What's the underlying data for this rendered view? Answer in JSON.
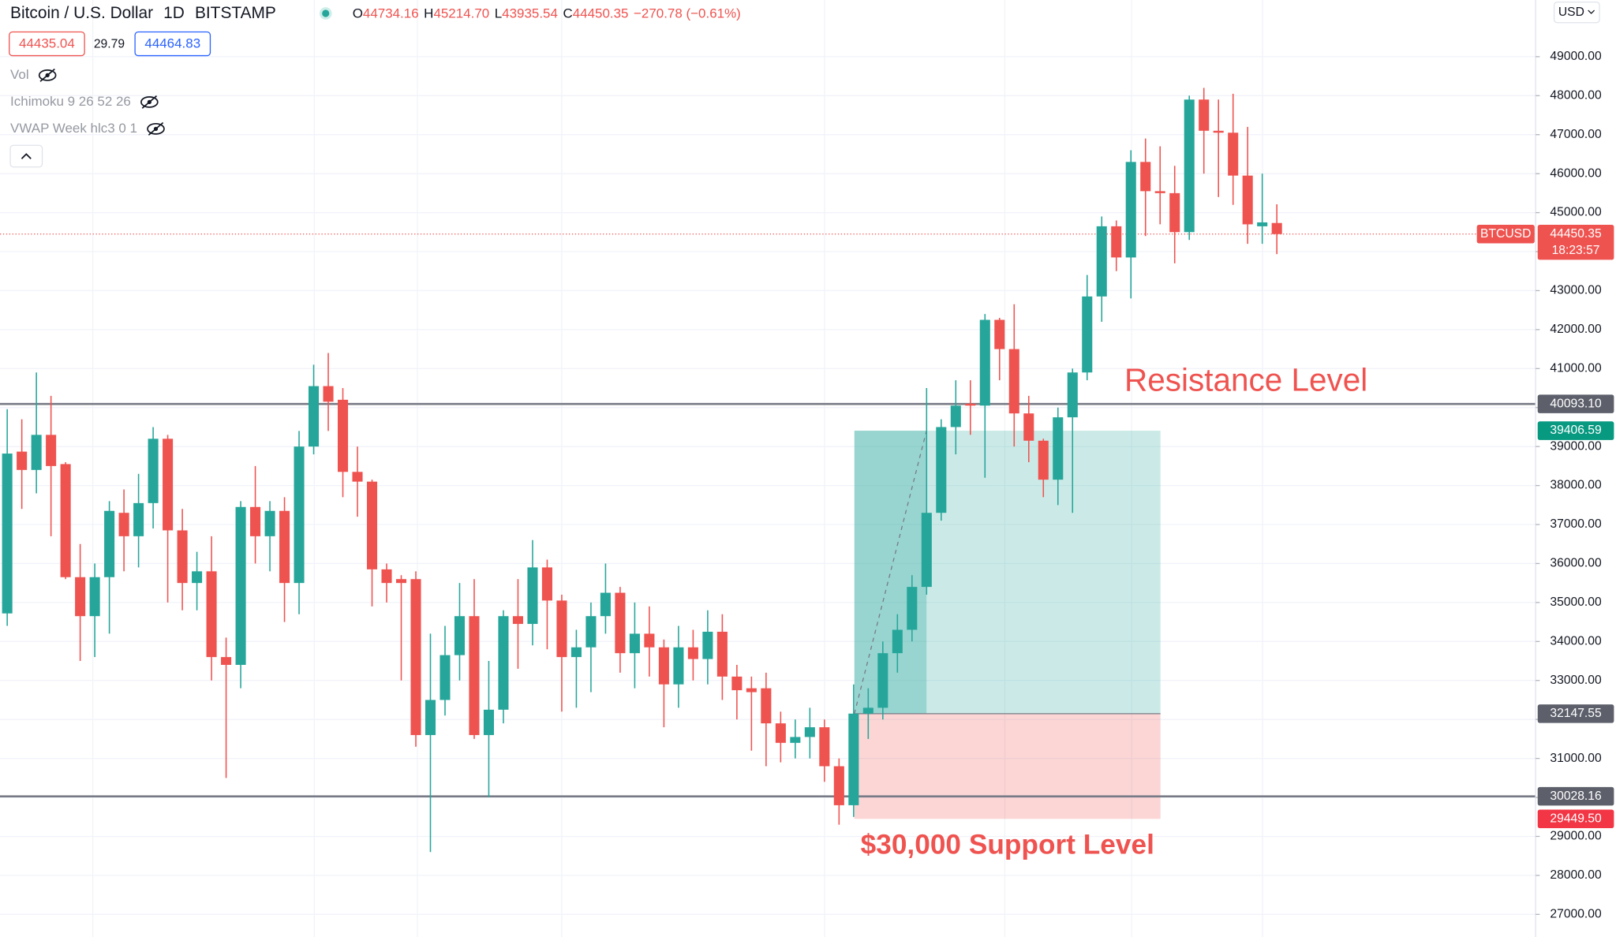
{
  "chart_data": {
    "type": "candlestick",
    "header": {
      "symbol": "Bitcoin / U.S. Dollar",
      "interval": "1D",
      "exchange": "BITSTAMP",
      "ohlc": [
        {
          "key": "O",
          "value": "44734.16"
        },
        {
          "key": "H",
          "value": "45214.70"
        },
        {
          "key": "L",
          "value": "43935.54"
        },
        {
          "key": "C",
          "value": "44450.35"
        }
      ],
      "change": "−270.78 (−0.61%)",
      "bid": "44435.04",
      "spread": "29.79",
      "ask": "44464.83",
      "indicators": [
        "Vol",
        "Ichimoku 9 26 52 26",
        "VWAP Week hlc3 0 1"
      ],
      "currency": "USD"
    },
    "up_color": "#26a69a",
    "down_color": "#ef5350",
    "ylim": [
      26420,
      50454
    ],
    "yticks": [
      {
        "value": 27000,
        "label": "27000.00"
      },
      {
        "value": 28000,
        "label": "28000.00"
      },
      {
        "value": 29000,
        "label": "29000.00"
      },
      {
        "value": 30000,
        "label": "30000.00"
      },
      {
        "value": 31000,
        "label": "31000.00"
      },
      {
        "value": 32000,
        "label": "32000.00"
      },
      {
        "value": 33000,
        "label": "33000.00"
      },
      {
        "value": 34000,
        "label": "34000.00"
      },
      {
        "value": 35000,
        "label": "35000.00"
      },
      {
        "value": 36000,
        "label": "36000.00"
      },
      {
        "value": 37000,
        "label": "37000.00"
      },
      {
        "value": 38000,
        "label": "38000.00"
      },
      {
        "value": 39000,
        "label": "39000.00"
      },
      {
        "value": 40000,
        "label": "40000.00"
      },
      {
        "value": 41000,
        "label": "41000.00"
      },
      {
        "value": 42000,
        "label": "42000.00"
      },
      {
        "value": 43000,
        "label": "43000.00"
      },
      {
        "value": 44000,
        "label": "44000.00"
      },
      {
        "value": 45000,
        "label": "45000.00"
      },
      {
        "value": 46000,
        "label": "46000.00"
      },
      {
        "value": 47000,
        "label": "47000.00"
      },
      {
        "value": 48000,
        "label": "48000.00"
      },
      {
        "value": 49000,
        "label": "49000.00"
      }
    ],
    "open": [
      34720,
      38870,
      38400,
      39300,
      38550,
      35650,
      34650,
      35650,
      37300,
      36700,
      37550,
      39200,
      36850,
      35500,
      35800,
      33600,
      33400,
      37450,
      36700,
      37350,
      35500,
      39000,
      40550,
      40200,
      38350,
      38100,
      35850,
      35600,
      35600,
      31600,
      32500,
      33650,
      34650,
      31600,
      32250,
      34650,
      34450,
      35900,
      35050,
      33600,
      33850,
      34650,
      35250,
      33700,
      34200,
      33850,
      32900,
      33850,
      33550,
      34250,
      33100,
      32800,
      32800,
      31900,
      31400,
      31550,
      31800,
      30800,
      29800,
      32150,
      32300,
      33700,
      34300,
      35400,
      37300,
      39500,
      40100,
      40050,
      42250,
      41500,
      39850,
      39150,
      38150,
      39750,
      40900,
      42850,
      44650,
      43850,
      46300,
      45550,
      45500,
      44500,
      47900,
      47100,
      47050,
      45950,
      44650,
      44734.16
    ],
    "high": [
      39960,
      39700,
      40900,
      40300,
      38600,
      36500,
      36000,
      37600,
      37900,
      38300,
      39500,
      39300,
      37400,
      36300,
      36700,
      34100,
      37600,
      38500,
      37600,
      37700,
      39400,
      41100,
      41400,
      40500,
      39000,
      38150,
      36000,
      35700,
      35800,
      34200,
      34400,
      35500,
      35600,
      33500,
      34800,
      35600,
      36600,
      36100,
      35200,
      34300,
      35000,
      36000,
      35400,
      35000,
      34900,
      34050,
      34400,
      34300,
      34800,
      34700,
      33400,
      33100,
      33200,
      32200,
      32000,
      32300,
      32000,
      31000,
      32900,
      32800,
      34000,
      34700,
      35700,
      40500,
      39700,
      40700,
      40700,
      42400,
      42300,
      42650,
      40300,
      39200,
      40000,
      41000,
      43400,
      44900,
      44800,
      46600,
      46900,
      46700,
      46200,
      48000,
      48200,
      47900,
      48050,
      47200,
      46000,
      45214.7
    ],
    "low": [
      34400,
      37400,
      37800,
      36700,
      35600,
      33500,
      33600,
      34200,
      35800,
      35900,
      36900,
      35000,
      34800,
      34800,
      33000,
      30500,
      32800,
      36000,
      35800,
      34500,
      34700,
      38800,
      39400,
      37700,
      37200,
      34900,
      35000,
      33000,
      31300,
      28600,
      32100,
      33000,
      31500,
      30000,
      31900,
      33300,
      33900,
      33800,
      32200,
      32300,
      32700,
      34200,
      33200,
      32800,
      33100,
      31800,
      32300,
      33000,
      32900,
      32500,
      32000,
      31200,
      30800,
      30900,
      31000,
      31000,
      30400,
      29300,
      29500,
      31500,
      32000,
      33200,
      34000,
      35200,
      37100,
      38800,
      39300,
      38200,
      40700,
      39000,
      38600,
      37700,
      37500,
      37300,
      40700,
      42200,
      43500,
      42800,
      44400,
      44700,
      43700,
      44300,
      46000,
      45400,
      45200,
      44200,
      44200,
      43935.54
    ],
    "close": [
      38820,
      38400,
      39300,
      38500,
      35650,
      34650,
      35650,
      37350,
      36700,
      37550,
      39200,
      36850,
      35500,
      35800,
      33600,
      33400,
      37450,
      36700,
      37350,
      35500,
      39000,
      40550,
      40150,
      38350,
      38100,
      35850,
      35500,
      35500,
      31600,
      32500,
      33650,
      34650,
      31600,
      32250,
      34650,
      34450,
      35900,
      35050,
      33600,
      33850,
      34650,
      35250,
      33700,
      34200,
      33850,
      32900,
      33850,
      33550,
      34250,
      33100,
      32750,
      32700,
      31900,
      31400,
      31550,
      31800,
      30800,
      29800,
      32150,
      32300,
      33700,
      34300,
      35400,
      37300,
      39500,
      40050,
      40050,
      42250,
      41500,
      39850,
      39150,
      38150,
      39750,
      40900,
      42850,
      44650,
      43850,
      46300,
      45550,
      45500,
      44500,
      47900,
      47100,
      47050,
      45950,
      44700,
      44750,
      44450.35
    ],
    "levels": [
      {
        "value": 40093.1,
        "label": "40093.10"
      },
      {
        "value": 30028.16,
        "label": "30028.16"
      }
    ],
    "position": {
      "target": {
        "value": 39406.59,
        "label": "39406.59"
      },
      "entry": {
        "value": 32147.55,
        "label": "32147.55"
      },
      "stop": {
        "value": 29449.5,
        "label": "29449.50"
      }
    },
    "last_price": {
      "symbol": "BTCUSD",
      "value": 44450.35,
      "label": "44450.35",
      "countdown": "18:23:57"
    },
    "annotations": [
      "Resistance Level",
      "$30,000 Support Level"
    ]
  }
}
